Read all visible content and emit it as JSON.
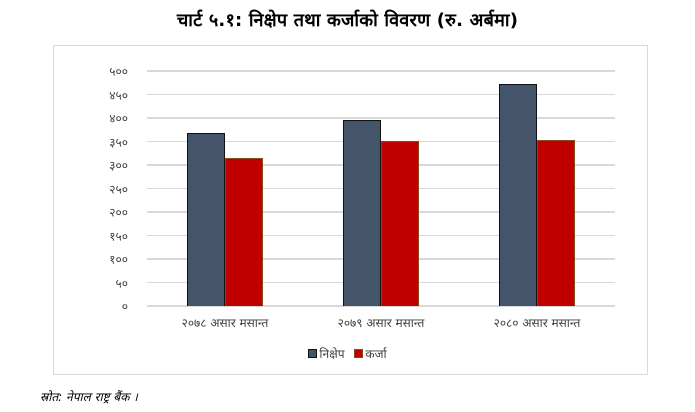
{
  "title": "चार्ट ५.१: निक्षेप तथा कर्जाको विवरण (रु. अर्बमा)",
  "source": "स्रोत: नेपाल राष्ट्र बैंक  ।",
  "colors": {
    "deposit": "#44546a",
    "loan": "#c00000",
    "grid": "#d9d9d9"
  },
  "chart_data": {
    "type": "bar",
    "title": "चार्ट ५.१: निक्षेप तथा कर्जाको विवरण (रु. अर्बमा)",
    "xlabel": "",
    "ylabel": "",
    "categories": [
      "२०७८ असार मसान्त",
      "२०७९ असार मसान्त",
      "२०८० असार मसान्त"
    ],
    "series": [
      {
        "name": "निक्षेप",
        "values": [
          368,
          396,
          472
        ]
      },
      {
        "name": "कर्जा",
        "values": [
          315,
          351,
          353
        ]
      }
    ],
    "ylim": [
      0,
      500
    ],
    "yticks": [
      0,
      50,
      100,
      150,
      200,
      250,
      300,
      350,
      400,
      450,
      500
    ],
    "ytick_labels": [
      "०",
      "५०",
      "१००",
      "१५०",
      "२००",
      "२५०",
      "३००",
      "३५०",
      "४००",
      "४५०",
      "५००"
    ],
    "grid": true,
    "legend_position": "bottom"
  }
}
